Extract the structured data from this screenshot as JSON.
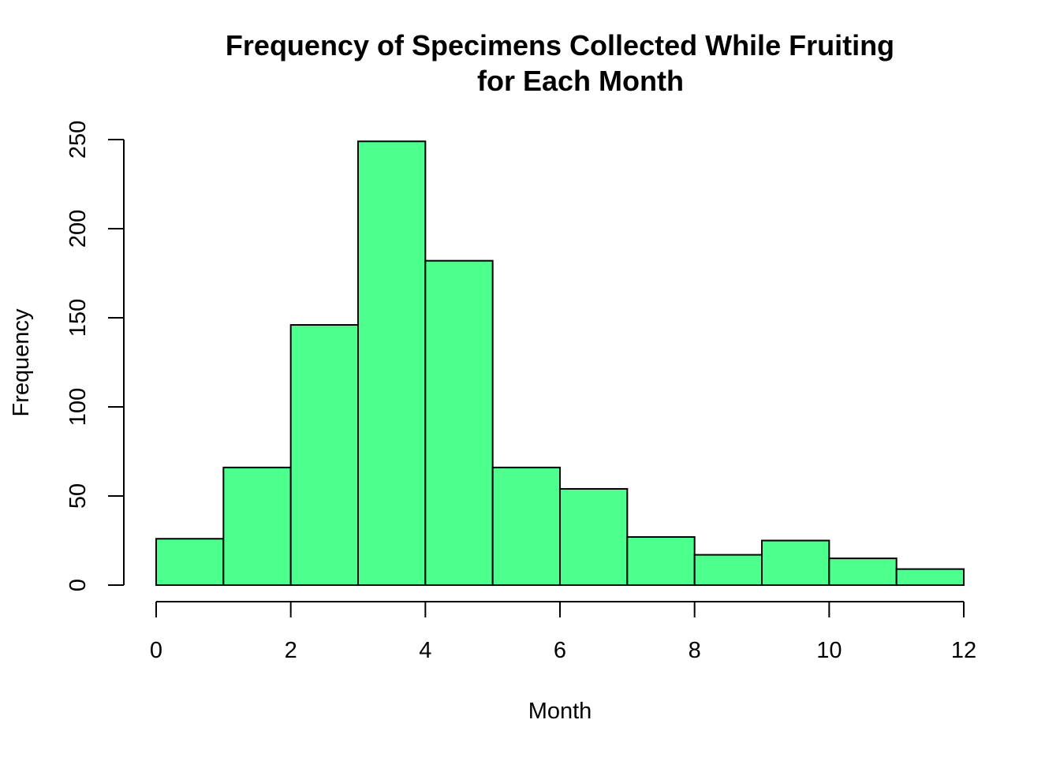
{
  "chart_data": {
    "type": "bar",
    "subtype": "histogram",
    "title": [
      "Frequency of Specimens Collected While Fruiting",
      "for Each Month"
    ],
    "xlabel": "Month",
    "ylabel": "Frequency",
    "bins": [
      {
        "x0": 0,
        "x1": 1,
        "count": 26
      },
      {
        "x0": 1,
        "x1": 2,
        "count": 66
      },
      {
        "x0": 2,
        "x1": 3,
        "count": 146
      },
      {
        "x0": 3,
        "x1": 4,
        "count": 249
      },
      {
        "x0": 4,
        "x1": 5,
        "count": 182
      },
      {
        "x0": 5,
        "x1": 6,
        "count": 66
      },
      {
        "x0": 6,
        "x1": 7,
        "count": 54
      },
      {
        "x0": 7,
        "x1": 8,
        "count": 27
      },
      {
        "x0": 8,
        "x1": 9,
        "count": 17
      },
      {
        "x0": 9,
        "x1": 10,
        "count": 25
      },
      {
        "x0": 10,
        "x1": 11,
        "count": 15
      },
      {
        "x0": 11,
        "x1": 12,
        "count": 9
      }
    ],
    "xlim": [
      0,
      12
    ],
    "ylim": [
      0,
      250
    ],
    "xticks": [
      "0",
      "2",
      "4",
      "6",
      "8",
      "10",
      "12"
    ],
    "yticks": [
      "0",
      "50",
      "100",
      "150",
      "200",
      "250"
    ],
    "bar_color": "#4DFF8C",
    "grid": false,
    "legend": "none"
  }
}
